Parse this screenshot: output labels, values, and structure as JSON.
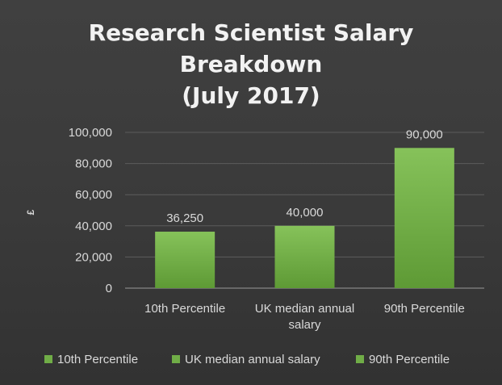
{
  "chart_data": {
    "type": "bar",
    "title_lines": [
      "Research Scientist Salary",
      "Breakdown",
      "(July 2017)"
    ],
    "ylabel": "£",
    "xlabel": "",
    "ylim": [
      0,
      100000
    ],
    "y_ticks": [
      0,
      20000,
      40000,
      60000,
      80000,
      100000
    ],
    "y_tick_labels": [
      "0",
      "20,000",
      "40,000",
      "60,000",
      "80,000",
      "100,000"
    ],
    "grid": true,
    "legend_position": "bottom",
    "bar_color": "#70ad47",
    "categories": [
      {
        "label_lines": [
          "10th Percentile"
        ],
        "value": 36250,
        "value_label": "36,250",
        "legend": "10th Percentile"
      },
      {
        "label_lines": [
          "UK median annual",
          "salary"
        ],
        "value": 40000,
        "value_label": "40,000",
        "legend": "UK median annual salary"
      },
      {
        "label_lines": [
          "90th Percentile"
        ],
        "value": 90000,
        "value_label": "90,000",
        "legend": "90th Percentile"
      }
    ]
  }
}
